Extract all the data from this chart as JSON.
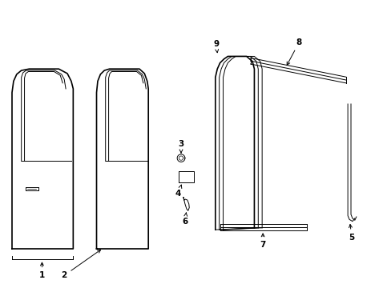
{
  "background_color": "#ffffff",
  "fig_width": 4.89,
  "fig_height": 3.6,
  "dpi": 100,
  "line_color": "#000000",
  "lw_outer": 1.2,
  "lw_inner": 0.7,
  "lw_label": 0.7,
  "label_fontsize": 7.5
}
